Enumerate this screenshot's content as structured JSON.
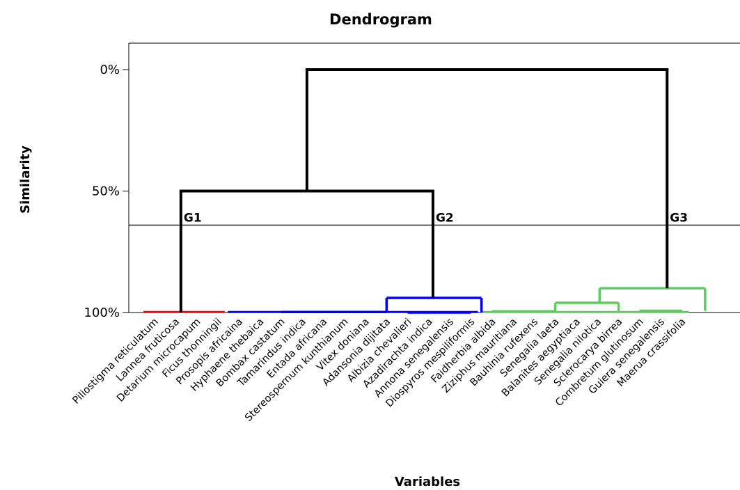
{
  "chart_data": {
    "type": "dendrogram",
    "title": "Dendrogram",
    "xlabel": "Variables",
    "ylabel": "Similarity",
    "ylim": [
      0,
      100
    ],
    "y_reversed": true,
    "yticks": [
      {
        "value": 0,
        "label": "0%"
      },
      {
        "value": 50,
        "label": "50%"
      },
      {
        "value": 100,
        "label": "100%"
      }
    ],
    "grid": false,
    "leaves": [
      {
        "name": "Piliostigma reticulatum",
        "group": "G1"
      },
      {
        "name": "Lannea fruticosa",
        "group": "G1"
      },
      {
        "name": "Detarium microcapum",
        "group": "G1"
      },
      {
        "name": "Ficus thonningii",
        "group": "G1"
      },
      {
        "name": "Prosopis africaina",
        "group": "G2"
      },
      {
        "name": "Hyphaene thebaica",
        "group": "G2"
      },
      {
        "name": "Bombax castatum",
        "group": "G2"
      },
      {
        "name": "Tamarindus indica",
        "group": "G2"
      },
      {
        "name": "Entada africana",
        "group": "G2"
      },
      {
        "name": "Stereospernum kunthianum",
        "group": "G2"
      },
      {
        "name": "Vitex doniana",
        "group": "G2"
      },
      {
        "name": "Adansonia dijitata",
        "group": "G2"
      },
      {
        "name": "Albizia chevalieri",
        "group": "G2"
      },
      {
        "name": "Azadirachta indica",
        "group": "G2"
      },
      {
        "name": "Annona senegalensis",
        "group": "G2"
      },
      {
        "name": "Diospyros mespiliformis",
        "group": "G2"
      },
      {
        "name": "Faidherbia albida",
        "group": "G3"
      },
      {
        "name": "Ziziphus mauritiana",
        "group": "G3"
      },
      {
        "name": "Bauhinia rufexens",
        "group": "G3"
      },
      {
        "name": "Senegalia laeta",
        "group": "G3"
      },
      {
        "name": "Balanites aegyptiaca",
        "group": "G3"
      },
      {
        "name": "Senegalia nilotica",
        "group": "G3"
      },
      {
        "name": "Sclerocarya birrea",
        "group": "G3"
      },
      {
        "name": "Combretum glutinosum",
        "group": "G3"
      },
      {
        "name": "Guiera senegalensis",
        "group": "G3"
      },
      {
        "name": "Maerua crassifolia",
        "group": "G3"
      }
    ],
    "groups": [
      {
        "name": "G1",
        "color": "#ff0000",
        "leaf_range": [
          0,
          3
        ],
        "merge_similarity": 100
      },
      {
        "name": "G2",
        "color": "#0000ff",
        "leaf_range": [
          4,
          15
        ],
        "merge_similarity": 94
      },
      {
        "name": "G3",
        "color": "#5fcc5f",
        "leaf_range": [
          16,
          25
        ],
        "merge_similarity": 90
      }
    ],
    "top_links": [
      {
        "left": "G1",
        "right": "G2",
        "similarity": 50,
        "color": "#000000"
      },
      {
        "left": "G1+G2",
        "right": "G3",
        "similarity": 0,
        "color": "#000000"
      }
    ],
    "inner_links": [
      {
        "group": "G2",
        "leaves": [
          6,
          11
        ],
        "similarity": 99.8
      },
      {
        "group": "G2",
        "leaves": [
          12,
          15
        ],
        "similarity": 100
      },
      {
        "group": "G3",
        "leaves": [
          16,
          19
        ],
        "similarity": 99.5
      },
      {
        "group": "G3",
        "leaves": [
          19,
          22
        ],
        "similarity": 96
      },
      {
        "group": "G3",
        "leaves": [
          23,
          25
        ],
        "similarity": 99.3
      }
    ],
    "cut_line_similarity": 64
  }
}
